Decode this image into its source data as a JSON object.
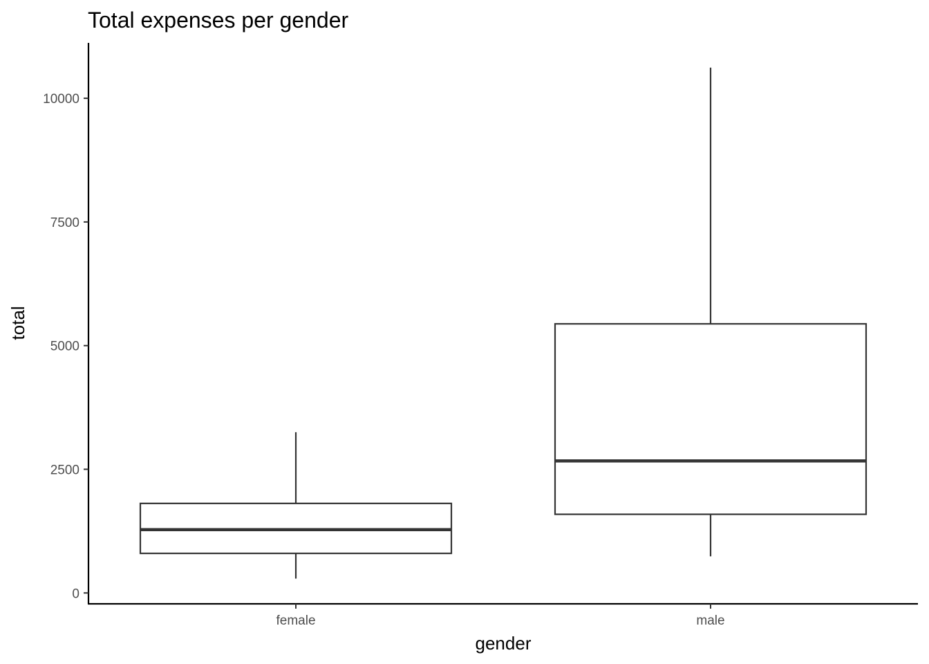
{
  "chart_data": {
    "type": "boxplot",
    "title": "Total expenses per gender",
    "xlabel": "gender",
    "ylabel": "total",
    "categories": [
      "female",
      "male"
    ],
    "boxes": [
      {
        "category": "female",
        "min": 290,
        "q1": 800,
        "median": 1280,
        "q3": 1810,
        "max": 3250
      },
      {
        "category": "male",
        "min": 740,
        "q1": 1590,
        "median": 2670,
        "q3": 5440,
        "max": 10620
      }
    ],
    "yticks": [
      0,
      2500,
      5000,
      7500,
      10000
    ],
    "ytick_labels": [
      "0",
      "2500",
      "5000",
      "7500",
      "10000"
    ],
    "ylim": [
      -220,
      11120
    ],
    "grid": false,
    "legend": "none",
    "colors": {
      "box_stroke": "#333333",
      "box_fill": "#ffffff",
      "axis": "#000000",
      "tick_label": "#4d4d4d"
    }
  }
}
